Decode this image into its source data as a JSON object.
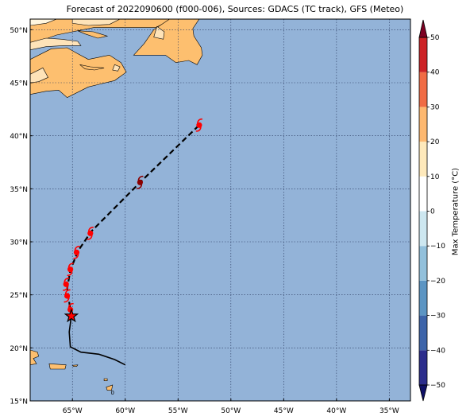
{
  "title": "Forecast of 2022090600 (f000-006), Sources: GDACS (TC track), GFS (Meteo)",
  "colors": {
    "ocean": "#93b3d8",
    "land_warm": "#fdbf6f",
    "land_light": "#fee3b8",
    "land_cream": "#fff6de",
    "track": "#000000",
    "storm_red": "#ff0000",
    "storm_darkred": "#8b0000",
    "star_fill": "#ff0000"
  },
  "map": {
    "lon_range": [
      -69,
      -33
    ],
    "lat_range": [
      15,
      51
    ],
    "lon_ticks": [
      {
        "value": -65,
        "label": "65°W"
      },
      {
        "value": -60,
        "label": "60°W"
      },
      {
        "value": -55,
        "label": "55°W"
      },
      {
        "value": -50,
        "label": "50°W"
      },
      {
        "value": -45,
        "label": "45°W"
      },
      {
        "value": -40,
        "label": "40°W"
      },
      {
        "value": -35,
        "label": "35°W"
      }
    ],
    "lat_ticks": [
      {
        "value": 15,
        "label": "15°N"
      },
      {
        "value": 20,
        "label": "20°N"
      },
      {
        "value": 25,
        "label": "25°N"
      },
      {
        "value": 30,
        "label": "30°N"
      },
      {
        "value": 35,
        "label": "35°N"
      },
      {
        "value": 40,
        "label": "40°N"
      },
      {
        "value": 45,
        "label": "45°N"
      },
      {
        "value": 50,
        "label": "50°N"
      }
    ],
    "grid": true,
    "land_background": [
      {
        "name": "nova-scotia-new-england",
        "fill": "land_warm",
        "poly": [
          [
            -69,
            47.2
          ],
          [
            -67,
            48.2
          ],
          [
            -65.5,
            48.3
          ],
          [
            -64.6,
            47.8
          ],
          [
            -63.5,
            47.2
          ],
          [
            -61.5,
            47.6
          ],
          [
            -60.4,
            46.9
          ],
          [
            -59.9,
            46.0
          ],
          [
            -61.0,
            45.2
          ],
          [
            -63.5,
            44.6
          ],
          [
            -65.5,
            43.6
          ],
          [
            -66.3,
            44.3
          ],
          [
            -67.5,
            44.2
          ],
          [
            -69,
            43.9
          ]
        ]
      },
      {
        "name": "quebec-north",
        "fill": "land_warm",
        "poly": [
          [
            -69,
            51
          ],
          [
            -55.6,
            51
          ],
          [
            -57.1,
            50.2
          ],
          [
            -59.5,
            50.2
          ],
          [
            -63,
            50.2
          ],
          [
            -66.5,
            49.5
          ],
          [
            -69,
            48.6
          ]
        ]
      },
      {
        "name": "newfoundland",
        "fill": "land_warm",
        "poly": [
          [
            -59.2,
            47.6
          ],
          [
            -58.2,
            48.7
          ],
          [
            -57.3,
            50.0
          ],
          [
            -55.8,
            51.0
          ],
          [
            -53.0,
            51.0
          ],
          [
            -53.6,
            50.1
          ],
          [
            -53.5,
            49.4
          ],
          [
            -52.8,
            48.3
          ],
          [
            -52.7,
            47.6
          ],
          [
            -53.2,
            46.7
          ],
          [
            -54.0,
            47.1
          ],
          [
            -55.2,
            46.9
          ],
          [
            -56.2,
            47.6
          ],
          [
            -57.5,
            47.6
          ]
        ]
      },
      {
        "name": "anticosti-island",
        "fill": "land_warm",
        "poly": [
          [
            -64.5,
            49.9
          ],
          [
            -63.0,
            49.8
          ],
          [
            -61.7,
            49.4
          ],
          [
            -62.6,
            49.2
          ],
          [
            -63.8,
            49.6
          ]
        ]
      },
      {
        "name": "pei",
        "fill": "land_warm",
        "poly": [
          [
            -64.3,
            46.7
          ],
          [
            -63.3,
            46.5
          ],
          [
            -62.0,
            46.4
          ],
          [
            -62.9,
            46.2
          ],
          [
            -63.8,
            46.3
          ]
        ]
      },
      {
        "name": "hispaniola",
        "fill": "land_warm",
        "poly": [
          [
            -69,
            19.8
          ],
          [
            -69,
            18.4
          ],
          [
            -68.4,
            18.5
          ],
          [
            -68.7,
            19.0
          ],
          [
            -68.2,
            19.2
          ],
          [
            -68.3,
            19.6
          ]
        ]
      },
      {
        "name": "puerto-rico",
        "fill": "land_warm",
        "poly": [
          [
            -67.2,
            18.5
          ],
          [
            -65.6,
            18.4
          ],
          [
            -65.7,
            18.0
          ],
          [
            -67.1,
            18.0
          ]
        ]
      },
      {
        "name": "virgin-islands",
        "fill": "land_warm",
        "poly": [
          [
            -65.0,
            18.35
          ],
          [
            -64.5,
            18.4
          ],
          [
            -64.6,
            18.25
          ],
          [
            -64.9,
            18.25
          ]
        ]
      },
      {
        "name": "leeward-islands",
        "fill": "land_warm",
        "poly": [
          [
            -62.0,
            17.1
          ],
          [
            -61.7,
            17.1
          ],
          [
            -61.7,
            16.9
          ],
          [
            -62.0,
            16.9
          ]
        ]
      },
      {
        "name": "guadeloupe",
        "fill": "land_warm",
        "poly": [
          [
            -61.8,
            16.3
          ],
          [
            -61.2,
            16.5
          ],
          [
            -61.3,
            16.0
          ],
          [
            -61.7,
            16.0
          ]
        ]
      }
    ],
    "land_cream": [
      {
        "name": "gaspe-light",
        "fill": "land_light",
        "poly": [
          [
            -69,
            48.8
          ],
          [
            -67.5,
            49.2
          ],
          [
            -66,
            49.1
          ],
          [
            -64.5,
            48.9
          ],
          [
            -64.2,
            48.5
          ],
          [
            -65.8,
            48.5
          ],
          [
            -67.5,
            48.4
          ],
          [
            -69,
            48.1
          ]
        ]
      },
      {
        "name": "labrador-light",
        "fill": "land_light",
        "poly": [
          [
            -65,
            51
          ],
          [
            -60.5,
            51
          ],
          [
            -61.5,
            50.5
          ],
          [
            -63.5,
            50.4
          ],
          [
            -65,
            50.6
          ]
        ]
      },
      {
        "name": "labrador-cream",
        "fill": "land_cream",
        "poly": [
          [
            -69,
            51
          ],
          [
            -66.5,
            51
          ],
          [
            -67.5,
            50.6
          ],
          [
            -69,
            50.4
          ]
        ]
      },
      {
        "name": "maine-light",
        "fill": "land_light",
        "poly": [
          [
            -69,
            45.8
          ],
          [
            -67.8,
            46.4
          ],
          [
            -67.3,
            45.5
          ],
          [
            -68.2,
            45.1
          ],
          [
            -69,
            45.0
          ]
        ]
      },
      {
        "name": "newfoundland-light",
        "fill": "land_light",
        "poly": [
          [
            -57.0,
            50.3
          ],
          [
            -56.3,
            49.8
          ],
          [
            -56.4,
            49.1
          ],
          [
            -57.3,
            49.3
          ]
        ]
      },
      {
        "name": "cape-breton-cream",
        "fill": "land_light",
        "poly": [
          [
            -61.0,
            46.7
          ],
          [
            -60.5,
            46.5
          ],
          [
            -60.7,
            46.1
          ],
          [
            -61.2,
            46.2
          ]
        ]
      }
    ],
    "track_observed": [
      [
        -65.1,
        23.0
      ],
      [
        -65.3,
        21.5
      ],
      [
        -65.2,
        20.1
      ],
      [
        -64.2,
        19.6
      ],
      [
        -62.5,
        19.4
      ],
      [
        -61.0,
        18.9
      ],
      [
        -60.0,
        18.4
      ]
    ],
    "track_forecast": [
      [
        -65.1,
        23.0
      ],
      [
        -65.3,
        24.3
      ],
      [
        -65.5,
        25.6
      ],
      [
        -65.2,
        27.3
      ],
      [
        -64.5,
        29.1
      ],
      [
        -63.2,
        31.0
      ],
      [
        -58.6,
        35.6
      ],
      [
        -53.0,
        41.0
      ]
    ],
    "storm_markers": [
      {
        "lon": -65.2,
        "lat": 23.6,
        "color": "storm_red"
      },
      {
        "lon": -65.5,
        "lat": 24.9,
        "color": "storm_red"
      },
      {
        "lon": -65.6,
        "lat": 26.0,
        "color": "storm_red"
      },
      {
        "lon": -65.2,
        "lat": 27.4,
        "color": "storm_red"
      },
      {
        "lon": -64.6,
        "lat": 29.0,
        "color": "storm_red"
      },
      {
        "lon": -63.3,
        "lat": 30.8,
        "color": "storm_red"
      },
      {
        "lon": -58.6,
        "lat": 35.6,
        "color": "storm_darkred"
      },
      {
        "lon": -53.0,
        "lat": 41.0,
        "color": "storm_red"
      }
    ],
    "current_position": {
      "lon": -65.1,
      "lat": 23.0
    },
    "small_labels": [
      {
        "lon": -61.2,
        "lat": 15.6,
        "text": "0"
      }
    ]
  },
  "colorbar": {
    "label": "Max Temperature (°C)",
    "min": -50,
    "max": 50,
    "levels": [
      {
        "from": -50,
        "to": -40,
        "color": "#2c2d8c"
      },
      {
        "from": -40,
        "to": -30,
        "color": "#3d64a9"
      },
      {
        "from": -30,
        "to": -20,
        "color": "#5c95c3"
      },
      {
        "from": -20,
        "to": -10,
        "color": "#92c0db"
      },
      {
        "from": -10,
        "to": 0,
        "color": "#cde7f0"
      },
      {
        "from": 0,
        "to": 10,
        "color": "#ffffff"
      },
      {
        "from": 10,
        "to": 20,
        "color": "#fee9bb"
      },
      {
        "from": 20,
        "to": 30,
        "color": "#fdb870"
      },
      {
        "from": 30,
        "to": 40,
        "color": "#f06c45"
      },
      {
        "from": 40,
        "to": 50,
        "color": "#cc2226"
      }
    ],
    "extend_low_color": "#0f1066",
    "extend_high_color": "#7d0022",
    "ticks": [
      {
        "value": -50,
        "label": "−50"
      },
      {
        "value": -40,
        "label": "−40"
      },
      {
        "value": -30,
        "label": "−30"
      },
      {
        "value": -20,
        "label": "−20"
      },
      {
        "value": -10,
        "label": "−10"
      },
      {
        "value": 0,
        "label": "0"
      },
      {
        "value": 10,
        "label": "10"
      },
      {
        "value": 20,
        "label": "20"
      },
      {
        "value": 30,
        "label": "30"
      },
      {
        "value": 40,
        "label": "40"
      },
      {
        "value": 50,
        "label": "50"
      }
    ]
  }
}
